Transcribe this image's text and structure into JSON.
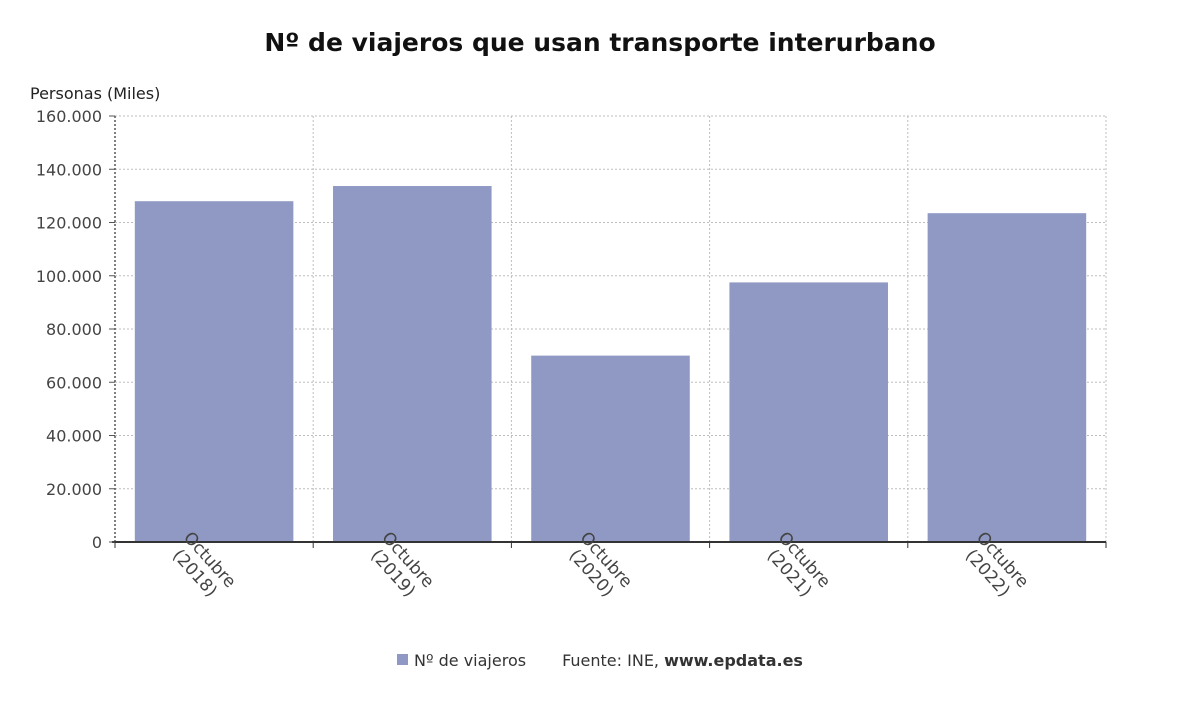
{
  "chart_data": {
    "type": "bar",
    "title": "Nº de viajeros que usan transporte interurbano",
    "ylabel": "Personas (Miles)",
    "xlabel": "",
    "categories": [
      "Octubre (2018)",
      "Octubre (2019)",
      "Octubre (2020)",
      "Octubre (2021)",
      "Octubre (2022)"
    ],
    "category_lines": [
      [
        "Octubre",
        "(2018)"
      ],
      [
        "Octubre",
        "(2019)"
      ],
      [
        "Octubre",
        "(2020)"
      ],
      [
        "Octubre",
        "(2021)"
      ],
      [
        "Octubre",
        "(2022)"
      ]
    ],
    "series": [
      {
        "name": "Nº de viajeros",
        "values": [
          128000,
          133700,
          70000,
          97500,
          123500
        ]
      }
    ],
    "ylim": [
      0,
      160000
    ],
    "yticks": [
      0,
      20000,
      40000,
      60000,
      80000,
      100000,
      120000,
      140000,
      160000
    ],
    "ytick_labels": [
      "0",
      "20.000",
      "40.000",
      "60.000",
      "80.000",
      "100.000",
      "120.000",
      "140.000",
      "160.000"
    ],
    "grid": true,
    "legend_position": "bottom",
    "bar_color": "#8f99c4"
  },
  "legend": {
    "series_label": "Nº de viajeros",
    "source_prefix": "Fuente: INE, ",
    "source_site": "www.epdata.es"
  }
}
